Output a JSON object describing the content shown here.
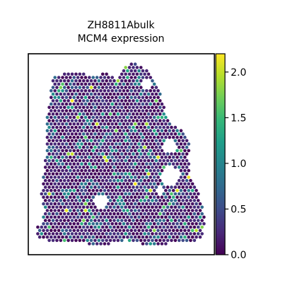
{
  "chart_data": {
    "type": "scatter",
    "subtype": "spatial-hex",
    "title": "ZH8811Abulk",
    "subtitle": "MCM4 expression",
    "colorbar": {
      "colormap": "viridis",
      "range": [
        0.0,
        2.2
      ],
      "ticks": [
        "0.0",
        "0.5",
        "1.0",
        "1.5",
        "2.0"
      ],
      "tick_values": [
        0.0,
        0.5,
        1.0,
        1.5,
        2.0
      ],
      "colors": [
        "#440154",
        "#482878",
        "#3e4a89",
        "#31688e",
        "#26828e",
        "#1f9e89",
        "#35b779",
        "#6ece58",
        "#b5de2b",
        "#fde725"
      ]
    },
    "axes": {
      "x_ticks": false,
      "y_ticks": false,
      "grid": false
    },
    "notes_on_values": "Most spots near 0.0-0.3; scattered medium values (0.5-1.2) and a few high spots (1.5-2.2)."
  }
}
